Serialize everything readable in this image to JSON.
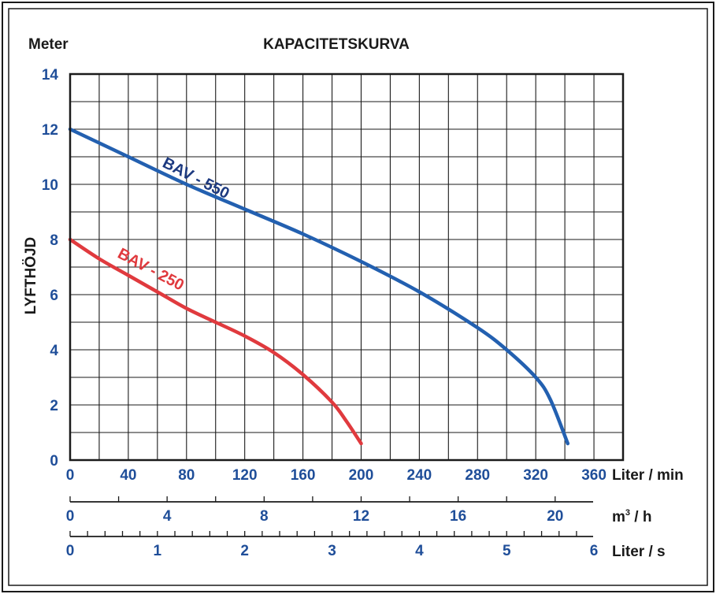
{
  "chart_data": {
    "type": "line",
    "title": "KAPACITETSKURVA",
    "ylabel": "LYFTHÖJD",
    "yunit": "Meter",
    "xlabel": "Liter / min",
    "ylim": [
      0,
      14
    ],
    "xlim": [
      0,
      380
    ],
    "grid": true,
    "y_ticks": [
      "0",
      "2",
      "4",
      "6",
      "8",
      "10",
      "12",
      "14"
    ],
    "x_ticks": [
      "0",
      "40",
      "80",
      "120",
      "160",
      "200",
      "240",
      "280",
      "320",
      "360"
    ],
    "secondary_axes": [
      {
        "label_prefix": "m",
        "label_sup": "3",
        "label_suffix": " / h",
        "ticks": [
          "0",
          "4",
          "8",
          "12",
          "16",
          "20"
        ],
        "tick_values": [
          0,
          4,
          8,
          12,
          16,
          20
        ],
        "max": 22.8
      },
      {
        "label": "Liter / s",
        "ticks": [
          "0",
          "1",
          "2",
          "3",
          "4",
          "5",
          "6"
        ],
        "tick_values": [
          0,
          1,
          2,
          3,
          4,
          5,
          6
        ],
        "max": 6.333
      }
    ],
    "series": [
      {
        "name": "BAV - 550",
        "color": "#2360b0",
        "label_color": "#1d3a80",
        "points": [
          [
            0,
            12
          ],
          [
            40,
            11
          ],
          [
            80,
            10
          ],
          [
            120,
            9.1
          ],
          [
            160,
            8.2
          ],
          [
            200,
            7.2
          ],
          [
            240,
            6.1
          ],
          [
            280,
            4.8
          ],
          [
            300,
            4.0
          ],
          [
            320,
            3.0
          ],
          [
            330,
            2.2
          ],
          [
            342,
            0.6
          ]
        ]
      },
      {
        "name": "BAV - 250",
        "color": "#e03a3e",
        "label_color": "#e03a3e",
        "points": [
          [
            0,
            8
          ],
          [
            20,
            7.3
          ],
          [
            40,
            6.7
          ],
          [
            60,
            6.1
          ],
          [
            80,
            5.5
          ],
          [
            100,
            5.0
          ],
          [
            120,
            4.5
          ],
          [
            140,
            3.9
          ],
          [
            160,
            3.1
          ],
          [
            180,
            2.1
          ],
          [
            190,
            1.4
          ],
          [
            200,
            0.6
          ]
        ]
      }
    ]
  }
}
